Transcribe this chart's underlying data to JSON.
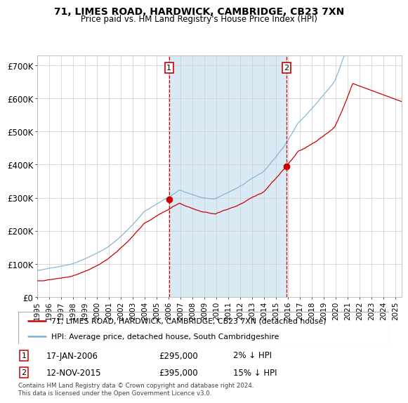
{
  "title1": "71, LIMES ROAD, HARDWICK, CAMBRIDGE, CB23 7XN",
  "title2": "Price paid vs. HM Land Registry's House Price Index (HPI)",
  "legend_line1": "71, LIMES ROAD, HARDWICK, CAMBRIDGE, CB23 7XN (detached house)",
  "legend_line2": "HPI: Average price, detached house, South Cambridgeshire",
  "transaction1": {
    "label": "1",
    "date": "17-JAN-2006",
    "price": 295000,
    "pct": "2% ↓ HPI",
    "year_float": 2006.04
  },
  "transaction2": {
    "label": "2",
    "date": "12-NOV-2015",
    "price": 395000,
    "pct": "15% ↓ HPI",
    "year_float": 2015.87
  },
  "hpi_line_color": "#7ab0d4",
  "price_line_color": "#cc0000",
  "dot_color": "#cc0000",
  "vline_color": "#cc0000",
  "shading_color": "#daeaf5",
  "background_color": "#ffffff",
  "grid_color": "#cccccc",
  "ylabel_vals": [
    "£0",
    "£100K",
    "£200K",
    "£300K",
    "£400K",
    "£500K",
    "£600K",
    "£700K"
  ],
  "ylim": [
    0,
    730000
  ],
  "start_year": 1995,
  "end_year": 2025,
  "footnote": "Contains HM Land Registry data © Crown copyright and database right 2024.\nThis data is licensed under the Open Government Licence v3.0."
}
